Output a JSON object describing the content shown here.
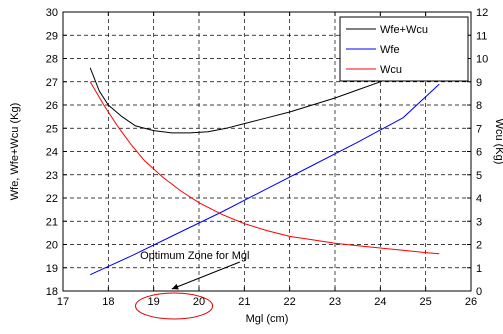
{
  "chart_data": {
    "type": "line",
    "xlabel": "Mgl (cm)",
    "ylabel_left": "Wfe, Wfe+Wcu (Kg)",
    "ylabel_right": "Wcu (Kg)",
    "xlim": [
      17,
      26
    ],
    "ylim_left": [
      18,
      30
    ],
    "ylim_right": [
      0,
      12
    ],
    "x_ticks": [
      17,
      18,
      19,
      20,
      21,
      22,
      23,
      24,
      25,
      26
    ],
    "y_left_ticks": [
      18,
      19,
      20,
      21,
      22,
      23,
      24,
      25,
      26,
      27,
      28,
      29,
      30
    ],
    "y_right_ticks": [
      0,
      1,
      2,
      3,
      4,
      5,
      6,
      7,
      8,
      9,
      10,
      11,
      12
    ],
    "grid": true,
    "legend_position": "top-right",
    "series": [
      {
        "name": "Wfe+Wcu",
        "color": "#000000",
        "axis": "left",
        "x": [
          17.6,
          17.8,
          18.0,
          18.3,
          18.6,
          19.0,
          19.4,
          19.8,
          20.2,
          20.6,
          21.0,
          21.5,
          22.0,
          22.5,
          23.0,
          23.5,
          24.0
        ],
        "y": [
          27.6,
          26.6,
          26.0,
          25.5,
          25.1,
          24.9,
          24.8,
          24.8,
          24.85,
          25.0,
          25.2,
          25.45,
          25.7,
          26.0,
          26.3,
          26.65,
          27.0
        ]
      },
      {
        "name": "Wfe",
        "color": "#0000ff",
        "axis": "left",
        "x": [
          17.6,
          18.5,
          19.5,
          20.5,
          21.5,
          22.5,
          23.5,
          24.5,
          25.3
        ],
        "y": [
          18.7,
          19.5,
          20.45,
          21.4,
          22.4,
          23.4,
          24.4,
          25.45,
          26.9
        ]
      },
      {
        "name": "Wcu",
        "color": "#ff0000",
        "axis": "right",
        "x": [
          17.6,
          17.9,
          18.2,
          18.5,
          18.8,
          19.2,
          19.6,
          20.0,
          20.5,
          21.0,
          21.5,
          22.0,
          22.5,
          23.0,
          23.5,
          24.0,
          24.5,
          25.0,
          25.3
        ],
        "y": [
          9.0,
          8.0,
          7.1,
          6.3,
          5.6,
          4.9,
          4.3,
          3.8,
          3.3,
          2.9,
          2.6,
          2.35,
          2.2,
          2.05,
          1.95,
          1.85,
          1.75,
          1.65,
          1.6
        ]
      }
    ],
    "annotation": {
      "text": "Optimum Zone for Mgl",
      "arrow_to_x": 19.4,
      "ellipse_x_range": [
        18.6,
        20.3
      ]
    }
  }
}
